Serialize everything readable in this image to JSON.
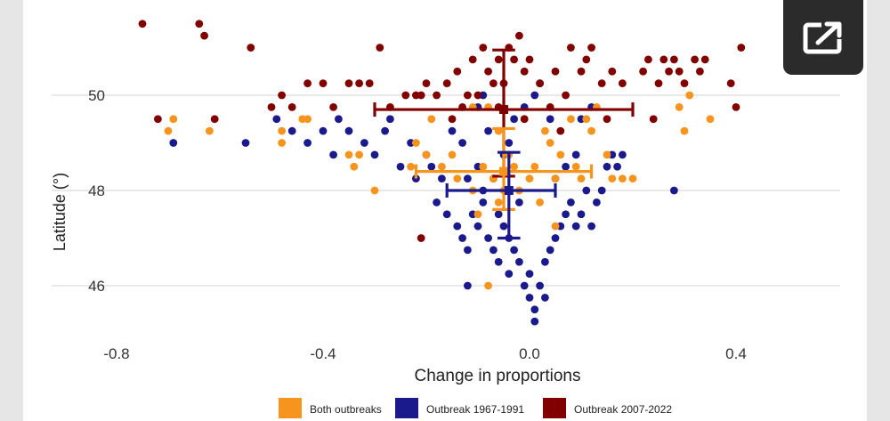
{
  "ui": {
    "expand_icon": "open-in-new-icon",
    "expand_button_color": "#2b2b2b"
  },
  "chart_data": {
    "type": "scatter",
    "title": "",
    "xlabel": "Change in proportions",
    "ylabel": "Latitude (°)",
    "xlim": [
      -0.8,
      0.55
    ],
    "ylim": [
      45.3,
      51.4
    ],
    "x_ticks": [
      {
        "value": -0.8,
        "label": "-0.8"
      },
      {
        "value": -0.4,
        "label": "-0.4"
      },
      {
        "value": 0.0,
        "label": "0.0"
      },
      {
        "value": 0.4,
        "label": "0.4"
      }
    ],
    "y_ticks": [
      {
        "value": 46,
        "label": "46"
      },
      {
        "value": 48,
        "label": "48"
      },
      {
        "value": 50,
        "label": "50"
      }
    ],
    "grid": true,
    "legend_position": "bottom",
    "series": [
      {
        "name": "Both outbreaks",
        "color": "#F7941D",
        "points": [
          [
            -0.69,
            49.5
          ],
          [
            -0.7,
            49.25
          ],
          [
            -0.62,
            49.25
          ],
          [
            -0.48,
            49.25
          ],
          [
            -0.48,
            49.0
          ],
          [
            -0.43,
            49.5
          ],
          [
            -0.44,
            49.5
          ],
          [
            -0.35,
            48.75
          ],
          [
            -0.34,
            48.5
          ],
          [
            -0.33,
            48.75
          ],
          [
            -0.3,
            48.0
          ],
          [
            -0.23,
            48.5
          ],
          [
            -0.22,
            49.0
          ],
          [
            -0.19,
            49.5
          ],
          [
            -0.2,
            48.75
          ],
          [
            -0.17,
            48.5
          ],
          [
            -0.15,
            48.75
          ],
          [
            -0.14,
            48.25
          ],
          [
            -0.11,
            49.75
          ],
          [
            -0.11,
            48.0
          ],
          [
            -0.09,
            48.5
          ],
          [
            -0.08,
            49.75
          ],
          [
            -0.07,
            48.25
          ],
          [
            -0.06,
            49.25
          ],
          [
            -0.05,
            48.0
          ],
          [
            -0.04,
            48.75
          ],
          [
            -0.03,
            48.5
          ],
          [
            -0.02,
            48.0
          ],
          [
            -0.01,
            49.5
          ],
          [
            0.0,
            48.25
          ],
          [
            -0.1,
            47.5
          ],
          [
            -0.06,
            47.75
          ],
          [
            -0.08,
            46.0
          ],
          [
            0.02,
            47.75
          ],
          [
            0.04,
            49.0
          ],
          [
            0.06,
            48.75
          ],
          [
            0.08,
            49.5
          ],
          [
            0.1,
            48.25
          ],
          [
            0.11,
            49.5
          ],
          [
            0.13,
            49.75
          ],
          [
            0.15,
            48.75
          ],
          [
            0.16,
            48.25
          ],
          [
            0.18,
            48.25
          ],
          [
            0.2,
            48.25
          ],
          [
            0.12,
            49.25
          ],
          [
            0.09,
            48.5
          ],
          [
            0.05,
            48.25
          ],
          [
            0.03,
            49.25
          ],
          [
            0.01,
            48.5
          ],
          [
            0.05,
            47.25
          ],
          [
            0.29,
            49.75
          ],
          [
            0.3,
            49.25
          ],
          [
            0.31,
            50.0
          ],
          [
            0.35,
            49.5
          ]
        ]
      },
      {
        "name": "Outbreak 1967-1991",
        "color": "#1A1A8C",
        "points": [
          [
            -0.69,
            49.0
          ],
          [
            -0.55,
            49.0
          ],
          [
            -0.49,
            49.5
          ],
          [
            -0.46,
            49.25
          ],
          [
            -0.43,
            49.0
          ],
          [
            -0.4,
            49.25
          ],
          [
            -0.38,
            48.75
          ],
          [
            -0.37,
            49.5
          ],
          [
            -0.35,
            49.25
          ],
          [
            -0.32,
            49.0
          ],
          [
            -0.3,
            48.75
          ],
          [
            -0.28,
            49.25
          ],
          [
            -0.27,
            49.5
          ],
          [
            -0.25,
            48.5
          ],
          [
            -0.23,
            49.0
          ],
          [
            -0.22,
            48.25
          ],
          [
            -0.2,
            48.75
          ],
          [
            -0.19,
            48.5
          ],
          [
            -0.17,
            48.25
          ],
          [
            -0.15,
            49.25
          ],
          [
            -0.13,
            49.0
          ],
          [
            -0.18,
            47.75
          ],
          [
            -0.16,
            47.5
          ],
          [
            -0.14,
            47.25
          ],
          [
            -0.13,
            47.0
          ],
          [
            -0.12,
            46.75
          ],
          [
            -0.12,
            46.0
          ],
          [
            -0.11,
            47.5
          ],
          [
            -0.1,
            47.25
          ],
          [
            -0.09,
            47.75
          ],
          [
            -0.08,
            47.0
          ],
          [
            -0.07,
            46.75
          ],
          [
            -0.06,
            47.5
          ],
          [
            -0.06,
            46.5
          ],
          [
            -0.05,
            47.25
          ],
          [
            -0.04,
            46.25
          ],
          [
            -0.04,
            47.0
          ],
          [
            -0.03,
            46.75
          ],
          [
            -0.02,
            46.5
          ],
          [
            -0.02,
            47.75
          ],
          [
            -0.01,
            46.0
          ],
          [
            0.0,
            46.25
          ],
          [
            0.0,
            45.75
          ],
          [
            0.01,
            45.5
          ],
          [
            0.01,
            45.25
          ],
          [
            0.02,
            46.0
          ],
          [
            0.03,
            45.75
          ],
          [
            0.03,
            46.5
          ],
          [
            0.04,
            46.75
          ],
          [
            0.05,
            47.0
          ],
          [
            0.06,
            47.25
          ],
          [
            0.07,
            47.5
          ],
          [
            0.08,
            47.75
          ],
          [
            0.09,
            47.25
          ],
          [
            0.1,
            47.5
          ],
          [
            0.11,
            48.0
          ],
          [
            0.12,
            47.25
          ],
          [
            0.13,
            47.75
          ],
          [
            0.14,
            48.0
          ],
          [
            0.15,
            48.5
          ],
          [
            0.16,
            48.75
          ],
          [
            0.17,
            48.5
          ],
          [
            0.18,
            48.75
          ],
          [
            -0.12,
            48.25
          ],
          [
            -0.1,
            48.5
          ],
          [
            -0.09,
            48.0
          ],
          [
            -0.07,
            48.25
          ],
          [
            -0.05,
            48.75
          ],
          [
            -0.04,
            49.0
          ],
          [
            -0.03,
            49.5
          ],
          [
            -0.01,
            49.75
          ],
          [
            0.01,
            50.0
          ],
          [
            0.02,
            50.25
          ],
          [
            0.04,
            49.5
          ],
          [
            0.05,
            48.25
          ],
          [
            0.07,
            48.5
          ],
          [
            0.09,
            48.75
          ],
          [
            0.1,
            49.5
          ],
          [
            0.12,
            49.75
          ],
          [
            -0.08,
            49.25
          ],
          [
            -0.1,
            49.75
          ],
          [
            -0.09,
            50.0
          ],
          [
            0.28,
            48.0
          ]
        ]
      },
      {
        "name": "Outbreak 2007-2022",
        "color": "#800000",
        "points": [
          [
            -0.75,
            51.5
          ],
          [
            -0.64,
            51.5
          ],
          [
            -0.63,
            51.25
          ],
          [
            -0.54,
            51.0
          ],
          [
            -0.72,
            49.5
          ],
          [
            -0.61,
            49.5
          ],
          [
            -0.5,
            49.75
          ],
          [
            -0.48,
            50.0
          ],
          [
            -0.46,
            49.75
          ],
          [
            -0.43,
            50.25
          ],
          [
            -0.4,
            50.25
          ],
          [
            -0.38,
            49.75
          ],
          [
            -0.35,
            50.25
          ],
          [
            -0.33,
            50.25
          ],
          [
            -0.31,
            50.25
          ],
          [
            -0.29,
            51.0
          ],
          [
            -0.27,
            49.75
          ],
          [
            -0.24,
            50.0
          ],
          [
            -0.22,
            50.0
          ],
          [
            -0.21,
            50.0
          ],
          [
            -0.2,
            50.25
          ],
          [
            -0.18,
            50.0
          ],
          [
            -0.16,
            50.25
          ],
          [
            -0.14,
            50.5
          ],
          [
            -0.13,
            49.75
          ],
          [
            -0.12,
            50.0
          ],
          [
            -0.11,
            50.75
          ],
          [
            -0.1,
            50.0
          ],
          [
            -0.09,
            51.0
          ],
          [
            -0.08,
            50.5
          ],
          [
            -0.07,
            50.25
          ],
          [
            -0.06,
            50.75
          ],
          [
            -0.05,
            50.25
          ],
          [
            -0.04,
            51.0
          ],
          [
            -0.03,
            50.75
          ],
          [
            -0.02,
            51.25
          ],
          [
            -0.01,
            50.5
          ],
          [
            0.0,
            50.75
          ],
          [
            0.02,
            50.25
          ],
          [
            0.04,
            49.75
          ],
          [
            0.05,
            50.5
          ],
          [
            0.07,
            50.0
          ],
          [
            0.08,
            51.0
          ],
          [
            0.1,
            50.5
          ],
          [
            0.11,
            50.75
          ],
          [
            0.12,
            51.0
          ],
          [
            0.14,
            50.25
          ],
          [
            0.16,
            50.5
          ],
          [
            0.18,
            50.25
          ],
          [
            0.22,
            50.5
          ],
          [
            0.23,
            50.75
          ],
          [
            0.24,
            49.5
          ],
          [
            0.25,
            50.25
          ],
          [
            0.26,
            50.75
          ],
          [
            0.27,
            50.5
          ],
          [
            0.28,
            50.75
          ],
          [
            0.29,
            50.5
          ],
          [
            0.3,
            50.25
          ],
          [
            0.32,
            50.75
          ],
          [
            0.33,
            50.5
          ],
          [
            0.34,
            50.75
          ],
          [
            0.39,
            50.25
          ],
          [
            0.4,
            49.75
          ],
          [
            0.41,
            51.0
          ],
          [
            -0.21,
            47.0
          ],
          [
            -0.06,
            49.75
          ],
          [
            -0.01,
            49.5
          ],
          [
            0.06,
            49.25
          ],
          [
            -0.15,
            49.5
          ],
          [
            0.15,
            49.5
          ]
        ]
      }
    ],
    "error_bars": [
      {
        "series": "Outbreak 2007-2022",
        "x": -0.05,
        "y": 49.7,
        "x_low": -0.3,
        "x_high": 0.2,
        "y_low": 48.3,
        "y_high": 50.95
      },
      {
        "series": "Both outbreaks",
        "x": -0.05,
        "y": 48.4,
        "x_low": -0.22,
        "x_high": 0.12,
        "y_low": 47.6,
        "y_high": 49.3
      },
      {
        "series": "Outbreak 1967-1991",
        "x": -0.04,
        "y": 48.0,
        "x_low": -0.16,
        "x_high": 0.05,
        "y_low": 47.0,
        "y_high": 48.8
      }
    ]
  }
}
